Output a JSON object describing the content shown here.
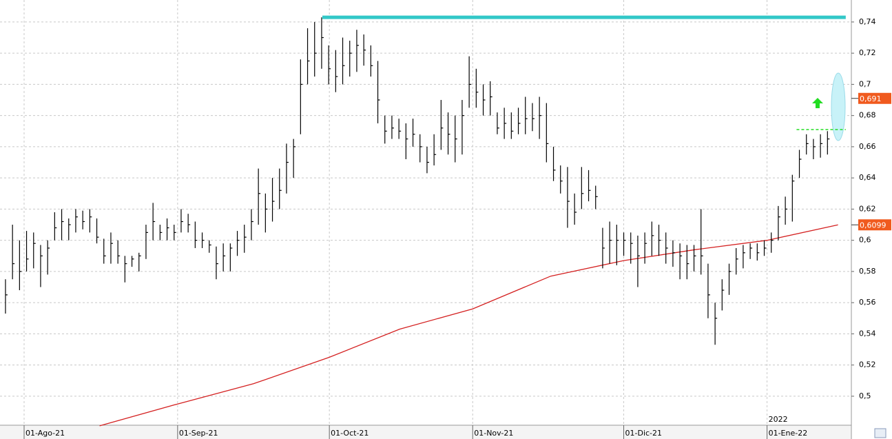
{
  "chart_data": {
    "type": "ohlc",
    "xlim": [
      -0.78,
      120.4
    ],
    "ylim": [
      0.4814,
      0.7541
    ],
    "grid": true,
    "xticks": [
      {
        "value": 2.65,
        "label": "01-Ago-21"
      },
      {
        "value": 24.5,
        "label": "01-Sep-21"
      },
      {
        "value": 46.1,
        "label": "01-Oct-21"
      },
      {
        "value": 66.5,
        "label": "01-Nov-21"
      },
      {
        "value": 88.0,
        "label": "01-Dic-21"
      },
      {
        "value": 108.4,
        "label": "01-Ene-22"
      }
    ],
    "year_label": "2022",
    "yticks": [
      {
        "value": 0.5,
        "label": "0,5"
      },
      {
        "value": 0.52,
        "label": "0,52"
      },
      {
        "value": 0.54,
        "label": "0,54"
      },
      {
        "value": 0.56,
        "label": "0,56"
      },
      {
        "value": 0.58,
        "label": "0,58"
      },
      {
        "value": 0.6,
        "label": "0,6"
      },
      {
        "value": 0.62,
        "label": "0,62"
      },
      {
        "value": 0.64,
        "label": "0,64"
      },
      {
        "value": 0.66,
        "label": "0,66"
      },
      {
        "value": 0.68,
        "label": "0,68"
      },
      {
        "value": 0.7,
        "label": "0,7"
      },
      {
        "value": 0.72,
        "label": "0,72"
      },
      {
        "value": 0.74,
        "label": "0,74"
      }
    ],
    "color": "#000000",
    "high": [
      0.575,
      0.61,
      0.6,
      0.606,
      0.605,
      0.597,
      0.6,
      0.618,
      0.62,
      0.614,
      0.62,
      0.619,
      0.62,
      0.614,
      0.601,
      0.605,
      0.6,
      0.59,
      0.59,
      0.592,
      0.61,
      0.624,
      0.61,
      0.614,
      0.61,
      0.62,
      0.617,
      0.612,
      0.605,
      0.6,
      0.596,
      0.598,
      0.598,
      0.606,
      0.61,
      0.62,
      0.646,
      0.63,
      0.64,
      0.646,
      0.662,
      0.665,
      0.716,
      0.736,
      0.74,
      0.743,
      0.725,
      0.722,
      0.73,
      0.728,
      0.735,
      0.732,
      0.725,
      0.715,
      0.68,
      0.68,
      0.678,
      0.675,
      0.678,
      0.668,
      0.66,
      0.668,
      0.69,
      0.682,
      0.68,
      0.69,
      0.718,
      0.71,
      0.7,
      0.702,
      0.682,
      0.685,
      0.682,
      0.685,
      0.692,
      0.688,
      0.692,
      0.688,
      0.66,
      0.648,
      0.647,
      0.63,
      0.647,
      0.645,
      0.635,
      0.608,
      0.612,
      0.61,
      0.605,
      0.605,
      0.603,
      0.605,
      0.612,
      0.61,
      0.605,
      0.6,
      0.598,
      0.597,
      0.597,
      0.62,
      0.585,
      0.56,
      0.575,
      0.585,
      0.595,
      0.597,
      0.598,
      0.598,
      0.6,
      0.605,
      0.622,
      0.628,
      0.642,
      0.658,
      0.668,
      0.665,
      0.668,
      0.67,
      0.701
    ],
    "low": [
      0.553,
      0.575,
      0.568,
      0.58,
      0.582,
      0.57,
      0.578,
      0.6,
      0.6,
      0.6,
      0.605,
      0.607,
      0.605,
      0.598,
      0.585,
      0.585,
      0.585,
      0.573,
      0.583,
      0.58,
      0.588,
      0.6,
      0.6,
      0.6,
      0.6,
      0.605,
      0.605,
      0.595,
      0.595,
      0.592,
      0.575,
      0.58,
      0.58,
      0.59,
      0.592,
      0.6,
      0.61,
      0.605,
      0.612,
      0.62,
      0.63,
      0.64,
      0.668,
      0.7,
      0.705,
      0.71,
      0.7,
      0.695,
      0.7,
      0.705,
      0.708,
      0.712,
      0.705,
      0.675,
      0.662,
      0.665,
      0.665,
      0.652,
      0.66,
      0.65,
      0.643,
      0.648,
      0.658,
      0.655,
      0.65,
      0.655,
      0.685,
      0.685,
      0.68,
      0.68,
      0.668,
      0.665,
      0.665,
      0.668,
      0.668,
      0.67,
      0.665,
      0.65,
      0.638,
      0.63,
      0.608,
      0.61,
      0.62,
      0.625,
      0.62,
      0.582,
      0.585,
      0.584,
      0.59,
      0.585,
      0.57,
      0.585,
      0.59,
      0.59,
      0.585,
      0.583,
      0.575,
      0.575,
      0.58,
      0.578,
      0.55,
      0.533,
      0.555,
      0.565,
      0.578,
      0.582,
      0.588,
      0.587,
      0.59,
      0.592,
      0.6,
      0.61,
      0.612,
      0.64,
      0.655,
      0.652,
      0.653,
      0.655,
      0.671
    ],
    "close": [
      0.565,
      0.585,
      0.58,
      0.588,
      0.598,
      0.59,
      0.595,
      0.608,
      0.612,
      0.61,
      0.615,
      0.612,
      0.615,
      0.602,
      0.59,
      0.598,
      0.59,
      0.585,
      0.588,
      0.59,
      0.605,
      0.612,
      0.605,
      0.608,
      0.605,
      0.612,
      0.61,
      0.6,
      0.6,
      0.597,
      0.585,
      0.59,
      0.595,
      0.6,
      0.602,
      0.612,
      0.63,
      0.62,
      0.625,
      0.632,
      0.65,
      0.66,
      0.7,
      0.715,
      0.72,
      0.73,
      0.71,
      0.705,
      0.712,
      0.72,
      0.725,
      0.722,
      0.712,
      0.69,
      0.67,
      0.672,
      0.67,
      0.665,
      0.668,
      0.66,
      0.65,
      0.655,
      0.672,
      0.668,
      0.665,
      0.68,
      0.7,
      0.695,
      0.69,
      0.692,
      0.672,
      0.675,
      0.67,
      0.675,
      0.678,
      0.678,
      0.68,
      0.662,
      0.645,
      0.638,
      0.625,
      0.618,
      0.63,
      0.632,
      0.628,
      0.595,
      0.6,
      0.6,
      0.6,
      0.598,
      0.59,
      0.598,
      0.603,
      0.6,
      0.595,
      0.592,
      0.59,
      0.585,
      0.59,
      0.59,
      0.565,
      0.55,
      0.568,
      0.58,
      0.588,
      0.592,
      0.595,
      0.592,
      0.595,
      0.6,
      0.615,
      0.62,
      0.638,
      0.652,
      0.662,
      0.66,
      0.662,
      0.665,
      0.691
    ],
    "ma": {
      "color": "#d42020",
      "x": [
        13.4,
        24.5,
        35.3,
        46.1,
        56.1,
        66.5,
        77.6,
        88.0,
        98.2,
        108.4,
        118.5
      ],
      "values": [
        0.481,
        0.495,
        0.508,
        0.525,
        0.543,
        0.556,
        0.577,
        0.587,
        0.594,
        0.6,
        0.6099
      ]
    },
    "hlines": [
      {
        "value": 0.743,
        "from": 45.1,
        "to": 119.6,
        "color": "#33c8c8",
        "dashed": false
      },
      {
        "value": 0.671,
        "from": 112.6,
        "to": 119.6,
        "color": "#22dd22",
        "dashed": true
      }
    ],
    "price_labels": [
      {
        "value": 0.691,
        "label": "0,691",
        "color": "#f05a1e"
      },
      {
        "value": 0.6099,
        "label": "0,6099",
        "color": "#f05a1e"
      }
    ]
  }
}
